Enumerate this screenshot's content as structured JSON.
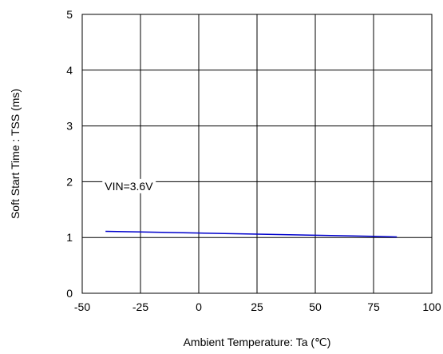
{
  "chart_data": {
    "type": "line",
    "title": "",
    "xlabel": "Ambient Temperature: Ta (℃)",
    "ylabel": "Soft Start Time : TSS (ms)",
    "xlim": [
      -50,
      100
    ],
    "ylim": [
      0,
      5
    ],
    "x_ticks": [
      -50,
      -25,
      0,
      25,
      50,
      75,
      100
    ],
    "y_ticks": [
      0,
      1,
      2,
      3,
      4,
      5
    ],
    "grid": true,
    "legend": "none",
    "annotations": [
      {
        "text": "VIN=3.6V",
        "x": -30,
        "y": 1.85
      }
    ],
    "series": [
      {
        "color": "#0000cc",
        "x": [
          -40,
          -25,
          0,
          25,
          50,
          75,
          85
        ],
        "y": [
          1.11,
          1.1,
          1.08,
          1.06,
          1.04,
          1.02,
          1.01
        ]
      }
    ]
  }
}
